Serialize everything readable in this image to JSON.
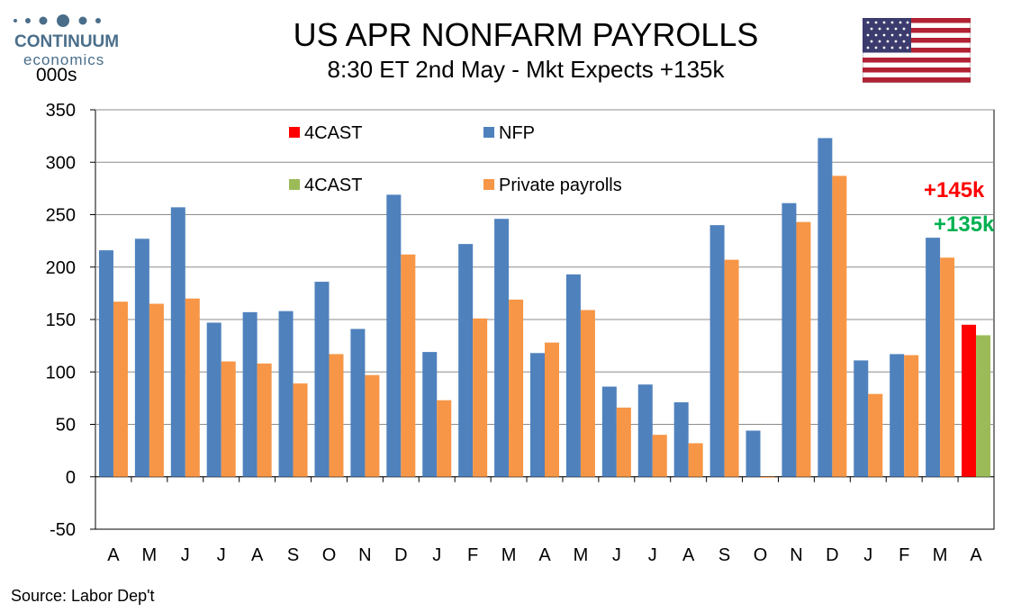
{
  "brand": {
    "name": "CONTINUUM",
    "sub": "economics"
  },
  "units_label": "000s",
  "title": "US APR NONFARM PAYROLLS",
  "subtitle": "8:30 ET 2nd May - Mkt Expects +135k",
  "source": "Source: Labor Dep't",
  "callouts": {
    "forecast": "+145k",
    "market": "+135k"
  },
  "colors": {
    "nfp": "#4f81bd",
    "private": "#f79646",
    "forecast_nfp": "#ff0000",
    "forecast_private": "#9bbb59",
    "callout_forecast": "#ff0000",
    "callout_market": "#00b050"
  },
  "chart_data": {
    "type": "bar",
    "categories": [
      "A",
      "M",
      "J",
      "J",
      "A",
      "S",
      "O",
      "N",
      "D",
      "J",
      "F",
      "M",
      "A",
      "M",
      "J",
      "J",
      "A",
      "S",
      "O",
      "N",
      "D",
      "J",
      "F",
      "M",
      "A"
    ],
    "series": [
      {
        "name": "NFP",
        "values": [
          216,
          227,
          257,
          147,
          157,
          158,
          186,
          141,
          269,
          119,
          222,
          246,
          118,
          193,
          86,
          88,
          71,
          240,
          44,
          261,
          323,
          111,
          117,
          228,
          null
        ]
      },
      {
        "name": "Private payrolls",
        "values": [
          167,
          165,
          170,
          110,
          108,
          89,
          117,
          97,
          212,
          73,
          151,
          169,
          128,
          159,
          66,
          40,
          32,
          207,
          0,
          243,
          287,
          79,
          116,
          209,
          null
        ]
      },
      {
        "name": "4CAST",
        "values": [
          null,
          null,
          null,
          null,
          null,
          null,
          null,
          null,
          null,
          null,
          null,
          null,
          null,
          null,
          null,
          null,
          null,
          null,
          null,
          null,
          null,
          null,
          null,
          null,
          145
        ]
      },
      {
        "name": "4CAST",
        "values": [
          null,
          null,
          null,
          null,
          null,
          null,
          null,
          null,
          null,
          null,
          null,
          null,
          null,
          null,
          null,
          null,
          null,
          null,
          null,
          null,
          null,
          null,
          null,
          null,
          135
        ]
      }
    ],
    "ylim": [
      -50,
      350
    ],
    "yticks": [
      "350",
      "300",
      "250",
      "200",
      "150",
      "100",
      "50",
      "0",
      "-50"
    ],
    "grid": true,
    "legend": [
      "4CAST",
      "NFP",
      "4CAST",
      "Private payrolls"
    ],
    "legend_placement": "top-left"
  }
}
